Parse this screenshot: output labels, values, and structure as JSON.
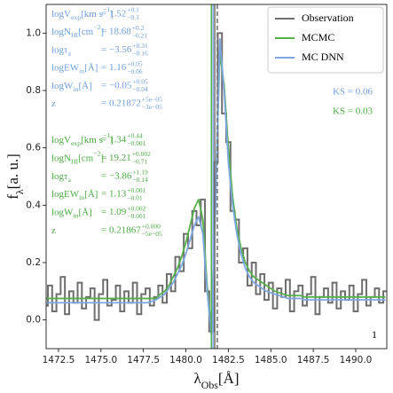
{
  "chart_data": {
    "type": "line",
    "x": [
      1471.75,
      1472,
      1472.25,
      1472.5,
      1472.75,
      1473,
      1473.25,
      1473.5,
      1473.75,
      1474,
      1474.25,
      1474.5,
      1474.75,
      1475,
      1475.25,
      1475.5,
      1475.75,
      1476,
      1476.25,
      1476.5,
      1476.75,
      1477,
      1477.25,
      1477.5,
      1477.75,
      1478,
      1478.25,
      1478.5,
      1478.75,
      1479,
      1479.25,
      1479.5,
      1479.75,
      1480,
      1480.25,
      1480.5,
      1480.75,
      1481,
      1481.25,
      1481.5,
      1481.75,
      1482,
      1482.25,
      1482.5,
      1482.75,
      1483,
      1483.25,
      1483.5,
      1483.75,
      1484,
      1484.25,
      1484.5,
      1484.75,
      1485,
      1485.25,
      1485.5,
      1485.75,
      1486,
      1486.25,
      1486.5,
      1486.75,
      1487,
      1487.25,
      1487.5,
      1487.75,
      1488,
      1488.25,
      1488.5,
      1488.75,
      1489,
      1489.25,
      1489.5,
      1489.75,
      1490,
      1490.25,
      1490.5,
      1490.75,
      1491,
      1491.25,
      1491.5,
      1491.75
    ],
    "series": [
      {
        "name": "Observation",
        "color": "#6e6e6e",
        "step": true,
        "values": [
          0.05,
          0.12,
          0.03,
          0.09,
          0.15,
          0.02,
          0.1,
          0.06,
          0.13,
          0.04,
          0.08,
          0.11,
          0.0,
          0.09,
          0.14,
          0.05,
          0.07,
          0.12,
          0.03,
          0.1,
          0.06,
          0.13,
          0.02,
          0.09,
          0.11,
          0.05,
          0.08,
          0.12,
          0.06,
          0.16,
          0.1,
          0.22,
          0.17,
          0.3,
          0.25,
          0.38,
          0.33,
          0.42,
          0.1,
          -0.04,
          0.55,
          1.0,
          0.72,
          0.62,
          0.38,
          0.35,
          0.2,
          0.25,
          0.12,
          0.2,
          0.09,
          0.16,
          0.07,
          0.13,
          0.04,
          0.11,
          0.08,
          0.14,
          0.03,
          0.1,
          0.12,
          0.05,
          0.09,
          0.15,
          0.02,
          0.08,
          0.11,
          0.06,
          0.13,
          0.04,
          0.1,
          0.07,
          0.12,
          0.03,
          0.09,
          0.14,
          0.05,
          0.08,
          0.11,
          0.06,
          0.1
        ]
      },
      {
        "name": "MCMC",
        "color": "#55b04a",
        "values": [
          0.075,
          0.075,
          0.075,
          0.075,
          0.075,
          0.075,
          0.075,
          0.075,
          0.075,
          0.075,
          0.075,
          0.075,
          0.075,
          0.075,
          0.075,
          0.075,
          0.075,
          0.075,
          0.075,
          0.075,
          0.075,
          0.075,
          0.075,
          0.075,
          0.075,
          0.075,
          0.075,
          0.09,
          0.1,
          0.12,
          0.15,
          0.18,
          0.22,
          0.27,
          0.33,
          0.39,
          0.42,
          0.35,
          0.12,
          -0.03,
          0.45,
          0.93,
          0.82,
          0.6,
          0.43,
          0.32,
          0.25,
          0.2,
          0.17,
          0.15,
          0.14,
          0.13,
          0.12,
          0.11,
          0.1,
          0.095,
          0.09,
          0.085,
          0.085,
          0.085,
          0.085,
          0.08,
          0.08,
          0.08,
          0.08,
          0.08,
          0.08,
          0.08,
          0.08,
          0.08,
          0.08,
          0.08,
          0.08,
          0.08,
          0.08,
          0.08,
          0.08,
          0.08,
          0.08,
          0.08,
          0.08
        ]
      },
      {
        "name": "MC DNN",
        "color": "#7ea7e2",
        "values": [
          0.06,
          0.06,
          0.06,
          0.06,
          0.06,
          0.06,
          0.06,
          0.06,
          0.06,
          0.06,
          0.06,
          0.06,
          0.06,
          0.06,
          0.06,
          0.06,
          0.06,
          0.06,
          0.06,
          0.06,
          0.06,
          0.06,
          0.06,
          0.06,
          0.06,
          0.065,
          0.07,
          0.08,
          0.09,
          0.11,
          0.13,
          0.16,
          0.19,
          0.23,
          0.28,
          0.33,
          0.36,
          0.3,
          0.1,
          -0.05,
          0.4,
          0.98,
          0.8,
          0.55,
          0.4,
          0.3,
          0.23,
          0.18,
          0.15,
          0.13,
          0.12,
          0.11,
          0.1,
          0.095,
          0.09,
          0.085,
          0.08,
          0.075,
          0.075,
          0.075,
          0.075,
          0.07,
          0.07,
          0.07,
          0.07,
          0.07,
          0.07,
          0.07,
          0.07,
          0.07,
          0.07,
          0.07,
          0.07,
          0.07,
          0.07,
          0.07,
          0.07,
          0.07,
          0.07,
          0.07,
          0.07
        ]
      }
    ],
    "vlines": [
      {
        "x": 1481.5,
        "color": "#55b04a"
      },
      {
        "x": 1481.6,
        "color": "#7ea7e2"
      },
      {
        "x": 1481.7,
        "color": "#6e6e6e"
      },
      {
        "x": 1481.85,
        "color": "#6e6e6e",
        "dashed": true
      }
    ],
    "xlim": [
      1471.77,
      1491.83
    ],
    "ylim": [
      -0.1,
      1.1
    ],
    "xticks": [
      1472.5,
      {
        "value": 1475,
        "label": "1475.0"
      },
      1477.5,
      {
        "value": 1480,
        "label": "1480.0"
      },
      1482.5,
      {
        "value": 1485,
        "label": "1485.0"
      },
      1487.5,
      {
        "value": 1490,
        "label": "1490.0"
      }
    ],
    "yticks": [
      {
        "value": 0,
        "label": "0.0"
      },
      0.2,
      0.4,
      0.6,
      0.8,
      {
        "value": 1,
        "label": "1.0"
      }
    ],
    "xlabel": [
      {
        "t": "λ"
      },
      {
        "t": "Obs",
        "pos": "sub"
      },
      {
        "t": "[Å]"
      }
    ],
    "ylabel": [
      {
        "t": "f"
      },
      {
        "t": "λ",
        "pos": "sub"
      },
      {
        "t": "[a. u.]"
      }
    ],
    "legend": "upper right",
    "annotations": [
      {
        "color": "#6f9fdc",
        "parts": [
          {
            "t": "logV"
          },
          {
            "t": "exp",
            "pos": "sub"
          },
          {
            "t": "[km s"
          },
          {
            "t": "−1",
            "pos": "sup"
          },
          {
            "t": "]"
          }
        ],
        "value": "= 1.52",
        "upper": "+0.1",
        "lower": "−0.1"
      },
      {
        "color": "#6f9fdc",
        "parts": [
          {
            "t": "logN"
          },
          {
            "t": "HI",
            "pos": "sub"
          },
          {
            "t": "[cm"
          },
          {
            "t": "−2",
            "pos": "sup"
          },
          {
            "t": "]"
          }
        ],
        "value": "= 18.68",
        "upper": "+0.2",
        "lower": "−0.21"
      },
      {
        "color": "#6f9fdc",
        "parts": [
          {
            "t": "logτ"
          },
          {
            "t": "a",
            "pos": "sub"
          }
        ],
        "value": "= −3.56",
        "upper": "+0.31",
        "lower": "−0.16"
      },
      {
        "color": "#6f9fdc",
        "parts": [
          {
            "t": "logEW"
          },
          {
            "t": "in",
            "pos": "sub"
          },
          {
            "t": "[Å]"
          }
        ],
        "value": "= 1.16",
        "upper": "+0.05",
        "lower": "−0.06"
      },
      {
        "color": "#6f9fdc",
        "parts": [
          {
            "t": "logW"
          },
          {
            "t": "in",
            "pos": "sub"
          },
          {
            "t": "[Å]"
          }
        ],
        "value": "= −0.05",
        "upper": "+0.05",
        "lower": "−0.04"
      },
      {
        "color": "#6f9fdc",
        "parts": [
          {
            "t": "z"
          }
        ],
        "value": "= 0.21872",
        "upper": "+5e−05",
        "lower": "−3e−05"
      },
      {
        "color": "#4caa45",
        "parts": [
          {
            "t": "logV"
          },
          {
            "t": "exp",
            "pos": "sub"
          },
          {
            "t": "[km s"
          },
          {
            "t": "−1",
            "pos": "sup"
          },
          {
            "t": "]"
          }
        ],
        "value": "= 1.34",
        "upper": "+0.44",
        "lower": "−0.001"
      },
      {
        "color": "#4caa45",
        "parts": [
          {
            "t": "logN"
          },
          {
            "t": "HI",
            "pos": "sub"
          },
          {
            "t": "[cm"
          },
          {
            "t": "−2",
            "pos": "sup"
          },
          {
            "t": "]"
          }
        ],
        "value": "= 19.21",
        "upper": "+0.002",
        "lower": "−0.71"
      },
      {
        "color": "#4caa45",
        "parts": [
          {
            "t": "logτ"
          },
          {
            "t": "a",
            "pos": "sub"
          }
        ],
        "value": "= −3.86",
        "upper": "+1.19",
        "lower": "−0.14"
      },
      {
        "color": "#4caa45",
        "parts": [
          {
            "t": "logEW"
          },
          {
            "t": "in",
            "pos": "sub"
          },
          {
            "t": "[Å]"
          }
        ],
        "value": "= 1.13",
        "upper": "+0.001",
        "lower": "−0.01"
      },
      {
        "color": "#4caa45",
        "parts": [
          {
            "t": "logW"
          },
          {
            "t": "in",
            "pos": "sub"
          },
          {
            "t": "[Å]"
          }
        ],
        "value": "= 1.09",
        "upper": "+0.002",
        "lower": "−0.001"
      },
      {
        "color": "#4caa45",
        "parts": [
          {
            "t": "z"
          }
        ],
        "value": "= 0.21867",
        "upper": "+0.000",
        "lower": "−5e−05"
      }
    ],
    "ks": [
      {
        "text": "KS = 0.06",
        "color": "#6f9fdc"
      },
      {
        "text": "KS = 0.03",
        "color": "#4caa45"
      }
    ],
    "panel_label": "1"
  }
}
